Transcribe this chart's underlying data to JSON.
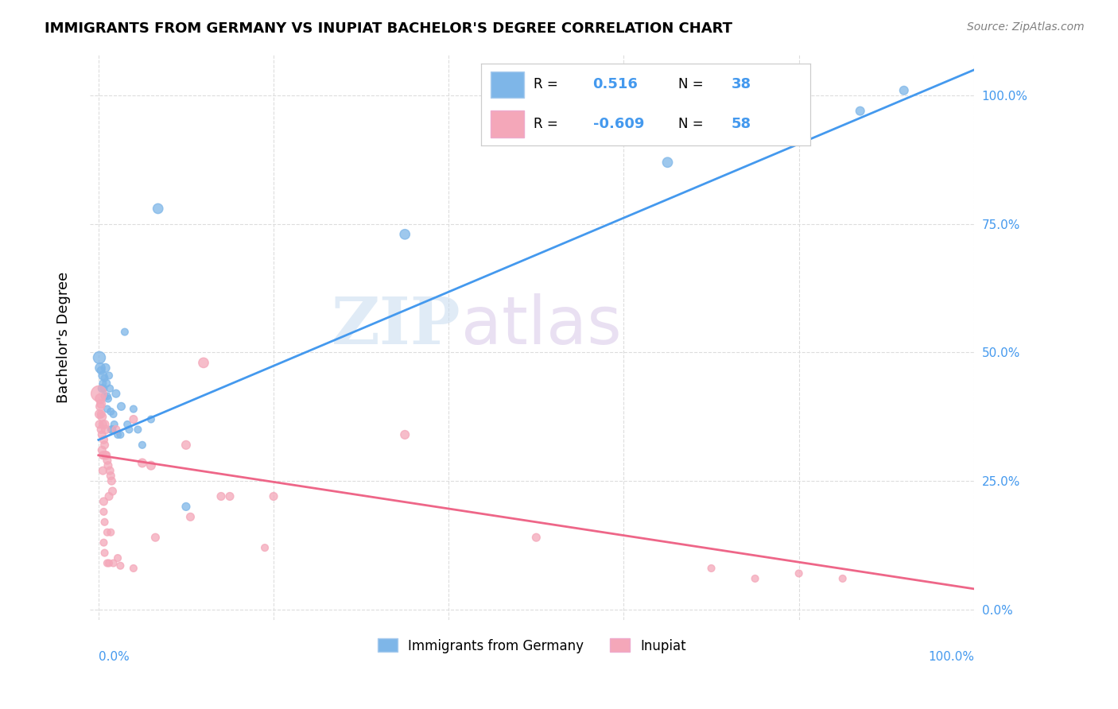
{
  "title": "IMMIGRANTS FROM GERMANY VS INUPIAT BACHELOR'S DEGREE CORRELATION CHART",
  "source": "Source: ZipAtlas.com",
  "ylabel": "Bachelor's Degree",
  "legend_blue_r": "0.516",
  "legend_blue_n": "38",
  "legend_pink_r": "-0.609",
  "legend_pink_n": "58",
  "blue_color": "#7EB6E8",
  "pink_color": "#F4A7B9",
  "blue_line_color": "#4499EE",
  "pink_line_color": "#EE6688",
  "watermark_zip": "ZIP",
  "watermark_atlas": "atlas",
  "blue_scatter": [
    [
      0.001,
      0.49
    ],
    [
      0.002,
      0.47
    ],
    [
      0.003,
      0.465
    ],
    [
      0.004,
      0.43
    ],
    [
      0.005,
      0.455
    ],
    [
      0.005,
      0.44
    ],
    [
      0.006,
      0.43
    ],
    [
      0.007,
      0.415
    ],
    [
      0.007,
      0.45
    ],
    [
      0.008,
      0.47
    ],
    [
      0.009,
      0.44
    ],
    [
      0.01,
      0.415
    ],
    [
      0.01,
      0.39
    ],
    [
      0.011,
      0.41
    ],
    [
      0.012,
      0.455
    ],
    [
      0.013,
      0.43
    ],
    [
      0.014,
      0.385
    ],
    [
      0.015,
      0.35
    ],
    [
      0.016,
      0.35
    ],
    [
      0.017,
      0.38
    ],
    [
      0.018,
      0.36
    ],
    [
      0.02,
      0.42
    ],
    [
      0.022,
      0.34
    ],
    [
      0.025,
      0.34
    ],
    [
      0.026,
      0.395
    ],
    [
      0.03,
      0.54
    ],
    [
      0.033,
      0.36
    ],
    [
      0.035,
      0.35
    ],
    [
      0.04,
      0.39
    ],
    [
      0.045,
      0.35
    ],
    [
      0.05,
      0.32
    ],
    [
      0.06,
      0.37
    ],
    [
      0.068,
      0.78
    ],
    [
      0.1,
      0.2
    ],
    [
      0.35,
      0.73
    ],
    [
      0.65,
      0.87
    ],
    [
      0.87,
      0.97
    ],
    [
      0.92,
      1.01
    ]
  ],
  "pink_scatter": [
    [
      0.0005,
      0.42
    ],
    [
      0.001,
      0.38
    ],
    [
      0.001,
      0.36
    ],
    [
      0.002,
      0.41
    ],
    [
      0.002,
      0.395
    ],
    [
      0.003,
      0.4
    ],
    [
      0.003,
      0.38
    ],
    [
      0.003,
      0.35
    ],
    [
      0.004,
      0.375
    ],
    [
      0.004,
      0.34
    ],
    [
      0.004,
      0.31
    ],
    [
      0.005,
      0.36
    ],
    [
      0.005,
      0.3
    ],
    [
      0.005,
      0.27
    ],
    [
      0.006,
      0.33
    ],
    [
      0.006,
      0.21
    ],
    [
      0.006,
      0.19
    ],
    [
      0.006,
      0.13
    ],
    [
      0.007,
      0.36
    ],
    [
      0.007,
      0.32
    ],
    [
      0.007,
      0.17
    ],
    [
      0.007,
      0.11
    ],
    [
      0.008,
      0.35
    ],
    [
      0.008,
      0.3
    ],
    [
      0.009,
      0.3
    ],
    [
      0.01,
      0.29
    ],
    [
      0.01,
      0.15
    ],
    [
      0.01,
      0.09
    ],
    [
      0.011,
      0.28
    ],
    [
      0.012,
      0.22
    ],
    [
      0.012,
      0.09
    ],
    [
      0.013,
      0.27
    ],
    [
      0.014,
      0.26
    ],
    [
      0.014,
      0.15
    ],
    [
      0.015,
      0.25
    ],
    [
      0.016,
      0.23
    ],
    [
      0.017,
      0.09
    ],
    [
      0.02,
      0.35
    ],
    [
      0.022,
      0.1
    ],
    [
      0.025,
      0.085
    ],
    [
      0.04,
      0.37
    ],
    [
      0.04,
      0.08
    ],
    [
      0.05,
      0.285
    ],
    [
      0.06,
      0.28
    ],
    [
      0.065,
      0.14
    ],
    [
      0.1,
      0.32
    ],
    [
      0.105,
      0.18
    ],
    [
      0.12,
      0.48
    ],
    [
      0.14,
      0.22
    ],
    [
      0.15,
      0.22
    ],
    [
      0.19,
      0.12
    ],
    [
      0.2,
      0.22
    ],
    [
      0.35,
      0.34
    ],
    [
      0.5,
      0.14
    ],
    [
      0.7,
      0.08
    ],
    [
      0.75,
      0.06
    ],
    [
      0.8,
      0.07
    ],
    [
      0.85,
      0.06
    ]
  ],
  "blue_sizes": [
    120,
    80,
    50,
    50,
    60,
    40,
    40,
    40,
    40,
    60,
    50,
    40,
    40,
    40,
    40,
    40,
    40,
    50,
    40,
    40,
    40,
    50,
    40,
    40,
    50,
    40,
    40,
    40,
    40,
    40,
    40,
    40,
    80,
    50,
    80,
    80,
    60,
    60
  ],
  "pink_sizes": [
    200,
    60,
    50,
    80,
    60,
    60,
    50,
    50,
    60,
    50,
    50,
    50,
    50,
    50,
    50,
    50,
    40,
    40,
    60,
    50,
    40,
    40,
    60,
    50,
    50,
    50,
    40,
    40,
    50,
    50,
    40,
    50,
    50,
    40,
    50,
    50,
    40,
    50,
    40,
    40,
    50,
    40,
    60,
    60,
    50,
    60,
    50,
    80,
    50,
    50,
    40,
    50,
    60,
    50,
    40,
    40,
    40,
    40
  ],
  "blue_line_x": [
    0.0,
    1.0
  ],
  "blue_line_y": [
    0.33,
    1.05
  ],
  "pink_line_x": [
    0.0,
    1.0
  ],
  "pink_line_y": [
    0.3,
    0.04
  ],
  "xlim": [
    -0.01,
    1.0
  ],
  "ylim": [
    -0.02,
    1.08
  ],
  "right_yticks": [
    0.0,
    0.25,
    0.5,
    0.75,
    1.0
  ],
  "right_yticklabels": [
    "0.0%",
    "25.0%",
    "50.0%",
    "75.0%",
    "100.0%"
  ],
  "right_tick_color": "#4499EE",
  "grid_color": "#DDDDDD",
  "title_fontsize": 13,
  "source_fontsize": 10,
  "ylabel_fontsize": 13,
  "legend_label_blue": "Immigrants from Germany",
  "legend_label_pink": "Inupiat"
}
